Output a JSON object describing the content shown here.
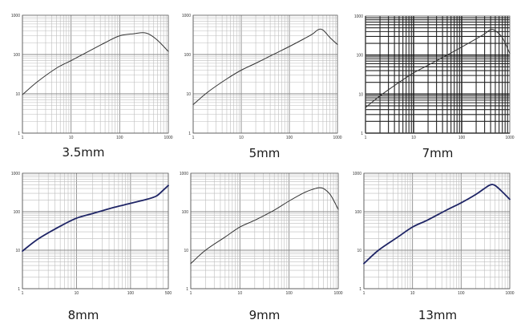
{
  "chart_data": [
    {
      "type": "line",
      "title": "3.5mm",
      "xscale": "log",
      "yscale": "log",
      "xlim": [
        1,
        1000
      ],
      "ylim": [
        1,
        1000
      ],
      "xticks": [
        "1",
        "10",
        "100",
        "1000"
      ],
      "yticks": [
        "1",
        "10",
        "100",
        "1000"
      ],
      "grid": "on",
      "color": "#333333",
      "x": [
        1,
        2,
        5,
        10,
        20,
        50,
        100,
        200,
        300,
        400,
        600,
        1000
      ],
      "y": [
        9.5,
        20,
        45,
        70,
        110,
        200,
        300,
        340,
        360,
        330,
        230,
        120
      ]
    },
    {
      "type": "line",
      "title": "5mm",
      "xscale": "log",
      "yscale": "log",
      "xlim": [
        1,
        1000
      ],
      "ylim": [
        1,
        1000
      ],
      "xticks": [
        "1",
        "10",
        "100",
        "1000"
      ],
      "yticks": [
        "1",
        "10",
        "100",
        "1000"
      ],
      "grid": "on",
      "color": "#333333",
      "x": [
        1,
        2,
        5,
        10,
        20,
        50,
        100,
        200,
        300,
        400,
        500,
        700,
        1000
      ],
      "y": [
        5.3,
        11,
        24,
        40,
        60,
        105,
        160,
        250,
        330,
        430,
        420,
        270,
        180
      ]
    },
    {
      "type": "line",
      "title": "7mm",
      "xscale": "log",
      "yscale": "log",
      "xlim": [
        1,
        1000
      ],
      "ylim": [
        1,
        1000
      ],
      "xticks": [
        "1",
        "10",
        "100",
        "1000"
      ],
      "yticks": [
        "1",
        "10",
        "100",
        "1000"
      ],
      "grid": "on",
      "color": "#333333",
      "x": [
        1,
        2,
        5,
        10,
        20,
        50,
        100,
        200,
        300,
        400,
        500,
        700,
        1000
      ],
      "y": [
        4.5,
        9,
        20,
        35,
        55,
        100,
        160,
        260,
        350,
        450,
        420,
        280,
        110
      ]
    },
    {
      "type": "line",
      "title": "8mm",
      "xscale": "log",
      "yscale": "log",
      "xlim": [
        1,
        500
      ],
      "ylim": [
        1,
        1000
      ],
      "xticks": [
        "1",
        "10",
        "100",
        "500"
      ],
      "yticks": [
        "1",
        "10",
        "100",
        "1000"
      ],
      "grid": "on",
      "color": "#1f2566",
      "x": [
        1,
        2,
        5,
        10,
        20,
        50,
        100,
        200,
        300,
        400,
        500
      ],
      "y": [
        9.5,
        20,
        42,
        68,
        90,
        130,
        165,
        210,
        255,
        360,
        480
      ]
    },
    {
      "type": "line",
      "title": "9mm",
      "xscale": "log",
      "yscale": "log",
      "xlim": [
        1,
        1000
      ],
      "ylim": [
        1,
        1000
      ],
      "xticks": [
        "1",
        "10",
        "100",
        "1000"
      ],
      "yticks": [
        "1",
        "10",
        "100",
        "1000"
      ],
      "grid": "on",
      "color": "#333333",
      "x": [
        1,
        2,
        5,
        10,
        20,
        50,
        100,
        200,
        300,
        400,
        500,
        700,
        1000
      ],
      "y": [
        4.5,
        10,
        22,
        40,
        60,
        110,
        190,
        310,
        380,
        420,
        400,
        270,
        115
      ]
    },
    {
      "type": "line",
      "title": "13mm",
      "xscale": "log",
      "yscale": "log",
      "xlim": [
        1,
        1000
      ],
      "ylim": [
        1,
        1000
      ],
      "xticks": [
        "1",
        "10",
        "100",
        "1000"
      ],
      "yticks": [
        "1",
        "10",
        "100",
        "1000"
      ],
      "grid": "on",
      "color": "#1f2566",
      "x": [
        1,
        2,
        5,
        10,
        20,
        50,
        100,
        200,
        300,
        400,
        500,
        700,
        1000
      ],
      "y": [
        4.5,
        10,
        22,
        40,
        60,
        110,
        170,
        280,
        400,
        500,
        480,
        330,
        210
      ]
    }
  ]
}
